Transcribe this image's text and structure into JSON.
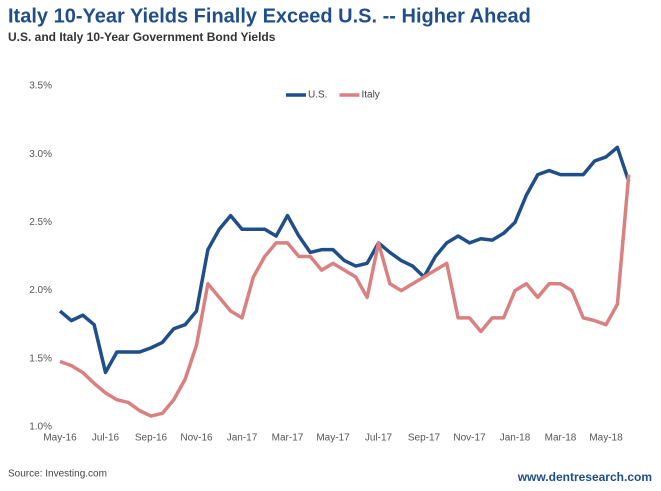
{
  "chart_data": {
    "type": "line",
    "title": "Italy 10-Year Yields Finally Exceed U.S. -- Higher Ahead",
    "subtitle": "U.S. and Italy 10-Year Government Bond Yields",
    "source": "Source: Investing.com",
    "credit": "www.dentresearch.com",
    "categories": [
      "May-16",
      null,
      null,
      null,
      "Jul-16",
      null,
      null,
      null,
      "Sep-16",
      null,
      null,
      null,
      "Nov-16",
      null,
      null,
      null,
      "Jan-17",
      null,
      null,
      null,
      "Mar-17",
      null,
      null,
      null,
      "May-17",
      null,
      null,
      null,
      "Jul-17",
      null,
      null,
      null,
      "Sep-17",
      null,
      null,
      null,
      "Nov-17",
      null,
      null,
      null,
      "Jan-18",
      null,
      null,
      null,
      "Mar-18",
      null,
      null,
      null,
      "May-18",
      null,
      null
    ],
    "series": [
      {
        "name": "U.S.",
        "color": "#1f4e89",
        "values": [
          1.85,
          1.78,
          1.82,
          1.75,
          1.4,
          1.55,
          1.55,
          1.55,
          1.58,
          1.62,
          1.72,
          1.75,
          1.85,
          2.3,
          2.45,
          2.55,
          2.45,
          2.45,
          2.45,
          2.4,
          2.55,
          2.4,
          2.28,
          2.3,
          2.3,
          2.22,
          2.18,
          2.2,
          2.35,
          2.28,
          2.22,
          2.18,
          2.1,
          2.25,
          2.35,
          2.4,
          2.35,
          2.38,
          2.37,
          2.42,
          2.5,
          2.7,
          2.85,
          2.88,
          2.85,
          2.85,
          2.85,
          2.95,
          2.98,
          3.05,
          2.8
        ]
      },
      {
        "name": "Italy",
        "color": "#d98080",
        "values": [
          1.48,
          1.45,
          1.4,
          1.32,
          1.25,
          1.2,
          1.18,
          1.12,
          1.08,
          1.1,
          1.2,
          1.35,
          1.6,
          2.05,
          1.95,
          1.85,
          1.8,
          2.1,
          2.25,
          2.35,
          2.35,
          2.25,
          2.25,
          2.15,
          2.2,
          2.15,
          2.1,
          1.95,
          2.35,
          2.05,
          2.0,
          2.05,
          2.1,
          2.15,
          2.2,
          1.8,
          1.8,
          1.7,
          1.8,
          1.8,
          2.0,
          2.05,
          1.95,
          2.05,
          2.05,
          2.0,
          1.8,
          1.78,
          1.75,
          1.9,
          2.85
        ]
      }
    ],
    "ylim": [
      1.0,
      3.5
    ],
    "yticks": [
      {
        "value": 1.0,
        "label": "1.0%"
      },
      {
        "value": 1.5,
        "label": "1.5%"
      },
      {
        "value": 2.0,
        "label": "2.0%"
      },
      {
        "value": 2.5,
        "label": "2.5%"
      },
      {
        "value": 3.0,
        "label": "3.0%"
      },
      {
        "value": 3.5,
        "label": "3.5%"
      }
    ],
    "grid": false,
    "legend": "top"
  }
}
